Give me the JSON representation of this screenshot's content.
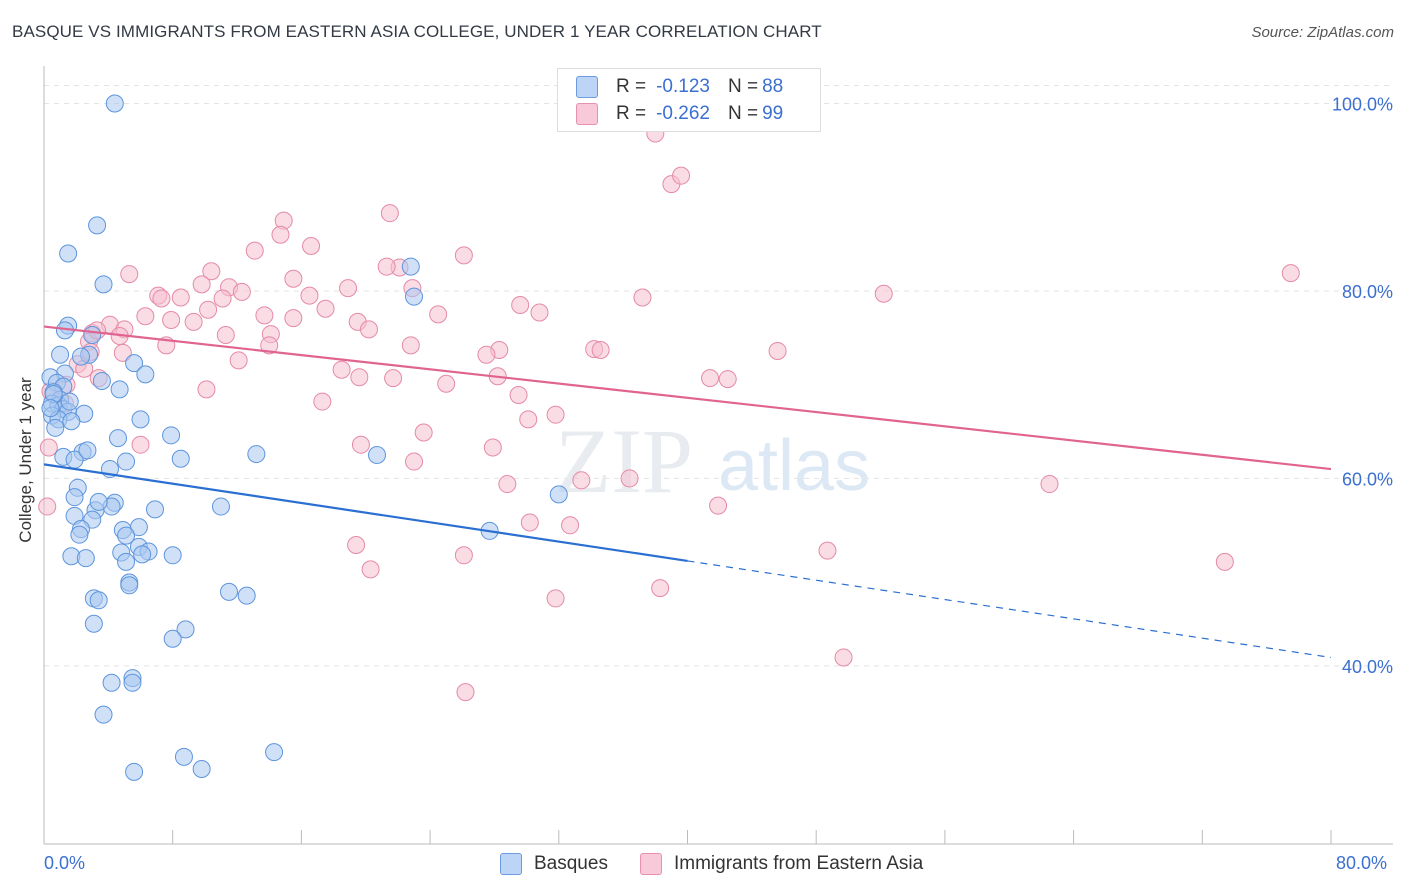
{
  "title": "BASQUE VS IMMIGRANTS FROM EASTERN ASIA COLLEGE, UNDER 1 YEAR CORRELATION CHART",
  "source": "Source: ZipAtlas.com",
  "watermark": {
    "zip": "ZIP",
    "atlas": "atlas"
  },
  "colors": {
    "blue_fill": "#a9c8f0",
    "blue_stroke": "#5d95dd",
    "blue_line": "#2a6fd1",
    "pink_fill": "#f6bfd0",
    "pink_stroke": "#e58aa8",
    "pink_line": "#e0648f",
    "tick_text": "#3b6fd0",
    "grid": "#e3e3e3"
  },
  "legend": {
    "rows": [
      {
        "r_label": "R = ",
        "r_value": "-0.123",
        "n_label": "N = ",
        "n_value": "88"
      },
      {
        "r_label": "R = ",
        "r_value": "-0.262",
        "n_label": "N = ",
        "n_value": "99"
      }
    ]
  },
  "bottom_legend": {
    "series1": "Basques",
    "series2": "Immigrants from Eastern Asia"
  },
  "chart_data": {
    "type": "scatter",
    "title": "BASQUE VS IMMIGRANTS FROM EASTERN ASIA COLLEGE, UNDER 1 YEAR CORRELATION CHART",
    "xlabel": "",
    "ylabel": "College, Under 1 year",
    "xlim": [
      0,
      80
    ],
    "ylim": [
      21,
      104
    ],
    "x_tick_labels": {
      "min": "0.0%",
      "max": "80.0%"
    },
    "y_ticks": [
      {
        "value": 100,
        "label": "100.0%"
      },
      {
        "value": 80,
        "label": "80.0%"
      },
      {
        "value": 60,
        "label": "60.0%"
      },
      {
        "value": 40,
        "label": "40.0%"
      }
    ],
    "grid": true,
    "legend_position": "top-center",
    "series": [
      {
        "name": "Basques",
        "color": "#a9c8f0",
        "trend": {
          "x_solid": [
            0,
            40
          ],
          "y_solid": [
            61.5,
            51.2
          ],
          "x_dashed": [
            40,
            80
          ],
          "y_dashed": [
            51.2,
            40.9
          ]
        },
        "points": [
          [
            4.4,
            100.0
          ],
          [
            3.3,
            87.0
          ],
          [
            1.5,
            84.0
          ],
          [
            3.7,
            80.7
          ],
          [
            22.8,
            82.6
          ],
          [
            23.0,
            79.4
          ],
          [
            1.5,
            76.3
          ],
          [
            1.3,
            75.8
          ],
          [
            3.0,
            75.3
          ],
          [
            1.0,
            73.2
          ],
          [
            2.8,
            73.2
          ],
          [
            5.6,
            72.3
          ],
          [
            1.3,
            71.2
          ],
          [
            0.4,
            70.8
          ],
          [
            6.3,
            71.1
          ],
          [
            0.8,
            70.2
          ],
          [
            1.2,
            69.8
          ],
          [
            3.6,
            70.4
          ],
          [
            0.6,
            69.2
          ],
          [
            4.7,
            69.5
          ],
          [
            1.0,
            68.4
          ],
          [
            0.5,
            68.0
          ],
          [
            0.9,
            67.8
          ],
          [
            1.2,
            67.4
          ],
          [
            1.5,
            67.1
          ],
          [
            0.5,
            66.7
          ],
          [
            0.9,
            66.3
          ],
          [
            2.5,
            66.9
          ],
          [
            1.7,
            66.1
          ],
          [
            6.0,
            66.3
          ],
          [
            7.9,
            64.6
          ],
          [
            4.6,
            64.3
          ],
          [
            2.4,
            62.8
          ],
          [
            1.2,
            62.3
          ],
          [
            1.9,
            62.0
          ],
          [
            13.2,
            62.6
          ],
          [
            8.5,
            62.1
          ],
          [
            5.1,
            61.8
          ],
          [
            20.7,
            62.5
          ],
          [
            4.1,
            61.0
          ],
          [
            2.1,
            59.0
          ],
          [
            1.9,
            58.0
          ],
          [
            32.0,
            58.3
          ],
          [
            4.4,
            57.4
          ],
          [
            4.2,
            57.0
          ],
          [
            1.9,
            56.0
          ],
          [
            3.2,
            56.6
          ],
          [
            6.9,
            56.7
          ],
          [
            11.0,
            57.0
          ],
          [
            3.0,
            55.6
          ],
          [
            2.3,
            54.6
          ],
          [
            5.9,
            54.8
          ],
          [
            4.9,
            54.5
          ],
          [
            2.2,
            54.0
          ],
          [
            5.1,
            53.9
          ],
          [
            27.7,
            54.4
          ],
          [
            5.9,
            52.7
          ],
          [
            4.8,
            52.1
          ],
          [
            6.5,
            52.2
          ],
          [
            6.1,
            51.9
          ],
          [
            1.7,
            51.7
          ],
          [
            2.6,
            51.5
          ],
          [
            8.0,
            51.8
          ],
          [
            5.1,
            51.1
          ],
          [
            5.3,
            48.9
          ],
          [
            5.3,
            48.6
          ],
          [
            11.5,
            47.9
          ],
          [
            12.6,
            47.5
          ],
          [
            3.1,
            47.2
          ],
          [
            3.4,
            47.0
          ],
          [
            3.1,
            44.5
          ],
          [
            8.8,
            43.9
          ],
          [
            8.0,
            42.9
          ],
          [
            5.5,
            38.7
          ],
          [
            5.5,
            38.2
          ],
          [
            4.2,
            38.2
          ],
          [
            3.7,
            34.8
          ],
          [
            8.7,
            30.3
          ],
          [
            14.3,
            30.8
          ],
          [
            9.8,
            29.0
          ],
          [
            5.6,
            28.7
          ],
          [
            0.6,
            69.0
          ],
          [
            1.6,
            68.2
          ],
          [
            2.7,
            63.0
          ],
          [
            3.4,
            57.5
          ],
          [
            0.4,
            67.5
          ],
          [
            0.7,
            65.4
          ],
          [
            2.3,
            73.0
          ]
        ]
      },
      {
        "name": "Immigrants from Eastern Asia",
        "color": "#f6bfd0",
        "trend": {
          "x_solid": [
            0,
            80
          ],
          "y_solid": [
            76.2,
            61.0
          ]
        },
        "points": [
          [
            38.0,
            96.8
          ],
          [
            39.0,
            91.4
          ],
          [
            39.6,
            92.3
          ],
          [
            21.5,
            88.3
          ],
          [
            14.9,
            87.5
          ],
          [
            14.7,
            86.0
          ],
          [
            16.6,
            84.8
          ],
          [
            13.1,
            84.3
          ],
          [
            26.1,
            83.8
          ],
          [
            5.3,
            81.8
          ],
          [
            10.4,
            82.1
          ],
          [
            15.5,
            81.3
          ],
          [
            22.1,
            82.5
          ],
          [
            21.3,
            82.6
          ],
          [
            77.5,
            81.9
          ],
          [
            9.8,
            80.7
          ],
          [
            11.5,
            80.4
          ],
          [
            12.3,
            79.9
          ],
          [
            18.9,
            80.3
          ],
          [
            22.9,
            80.3
          ],
          [
            7.1,
            79.5
          ],
          [
            7.3,
            79.2
          ],
          [
            8.5,
            79.3
          ],
          [
            16.5,
            79.5
          ],
          [
            37.2,
            79.3
          ],
          [
            52.2,
            79.7
          ],
          [
            10.2,
            78.0
          ],
          [
            11.1,
            79.2
          ],
          [
            17.5,
            78.1
          ],
          [
            29.6,
            78.5
          ],
          [
            30.8,
            77.7
          ],
          [
            13.7,
            77.4
          ],
          [
            15.5,
            77.1
          ],
          [
            6.3,
            77.3
          ],
          [
            7.9,
            76.9
          ],
          [
            9.3,
            76.7
          ],
          [
            19.5,
            76.7
          ],
          [
            24.5,
            77.5
          ],
          [
            4.1,
            76.4
          ],
          [
            5.0,
            75.9
          ],
          [
            20.2,
            75.9
          ],
          [
            4.7,
            75.2
          ],
          [
            11.3,
            75.3
          ],
          [
            3.0,
            75.5
          ],
          [
            14.1,
            75.4
          ],
          [
            2.8,
            74.6
          ],
          [
            14.0,
            74.2
          ],
          [
            7.6,
            74.2
          ],
          [
            22.8,
            74.2
          ],
          [
            28.3,
            73.7
          ],
          [
            27.5,
            73.2
          ],
          [
            34.2,
            73.8
          ],
          [
            34.6,
            73.7
          ],
          [
            45.6,
            73.6
          ],
          [
            2.9,
            73.5
          ],
          [
            4.9,
            73.4
          ],
          [
            12.1,
            72.6
          ],
          [
            2.1,
            72.2
          ],
          [
            2.5,
            71.7
          ],
          [
            18.5,
            71.6
          ],
          [
            41.4,
            70.7
          ],
          [
            42.5,
            70.6
          ],
          [
            3.4,
            70.7
          ],
          [
            19.6,
            70.8
          ],
          [
            21.7,
            70.7
          ],
          [
            28.2,
            70.9
          ],
          [
            29.5,
            68.9
          ],
          [
            1.4,
            70.0
          ],
          [
            10.1,
            69.5
          ],
          [
            0.4,
            69.3
          ],
          [
            25.0,
            70.1
          ],
          [
            17.3,
            68.2
          ],
          [
            1.3,
            68.0
          ],
          [
            30.1,
            66.3
          ],
          [
            31.8,
            66.8
          ],
          [
            23.6,
            64.9
          ],
          [
            19.7,
            63.6
          ],
          [
            6.0,
            63.6
          ],
          [
            27.9,
            63.3
          ],
          [
            0.3,
            63.3
          ],
          [
            23.0,
            61.8
          ],
          [
            36.4,
            60.0
          ],
          [
            33.4,
            59.8
          ],
          [
            28.8,
            59.4
          ],
          [
            62.5,
            59.4
          ],
          [
            41.9,
            57.1
          ],
          [
            30.2,
            55.3
          ],
          [
            32.7,
            55.0
          ],
          [
            19.4,
            52.9
          ],
          [
            26.1,
            51.8
          ],
          [
            48.7,
            52.3
          ],
          [
            73.4,
            51.1
          ],
          [
            20.3,
            50.3
          ],
          [
            38.3,
            48.3
          ],
          [
            31.8,
            47.2
          ],
          [
            49.7,
            40.9
          ],
          [
            26.2,
            37.2
          ],
          [
            3.3,
            75.8
          ],
          [
            0.2,
            57.0
          ]
        ]
      }
    ]
  }
}
